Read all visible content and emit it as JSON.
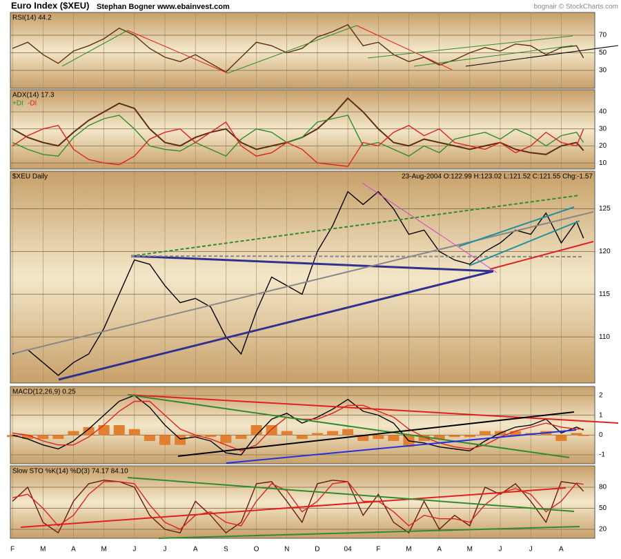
{
  "header": {
    "title": "Euro Index ($XEU)",
    "author": "Stephan Bogner  www.ebainvest.com",
    "credit": "bognair © StockCharts.com"
  },
  "chart_data": {
    "x": [
      0,
      0.5,
      1,
      1.5,
      2,
      2.5,
      3,
      3.5,
      4,
      4.5,
      5,
      5.5,
      6,
      6.5,
      7,
      7.5,
      8,
      8.5,
      9,
      9.5,
      10,
      10.5,
      11,
      11.5,
      12,
      12.5,
      13,
      13.5,
      14,
      14.5,
      15,
      15.5,
      16,
      16.5,
      17,
      17.5,
      18,
      18.5,
      18.73
    ],
    "xlim": [
      -0.07,
      19.1
    ],
    "xticks": [
      {
        "value": 0,
        "label": "F"
      },
      {
        "value": 1,
        "label": "M"
      },
      {
        "value": 2,
        "label": "A"
      },
      {
        "value": 3,
        "label": "M"
      },
      {
        "value": 4,
        "label": "J"
      },
      {
        "value": 5,
        "label": "J"
      },
      {
        "value": 6,
        "label": "A"
      },
      {
        "value": 7,
        "label": "S"
      },
      {
        "value": 8,
        "label": "O"
      },
      {
        "value": 9,
        "label": "N"
      },
      {
        "value": 10,
        "label": "D"
      },
      {
        "value": 11,
        "label": "04"
      },
      {
        "value": 12,
        "label": "F"
      },
      {
        "value": 13,
        "label": "M"
      },
      {
        "value": 14,
        "label": "A"
      },
      {
        "value": 15,
        "label": "M"
      },
      {
        "value": 16,
        "label": "J"
      },
      {
        "value": 17,
        "label": "J"
      },
      {
        "value": 18,
        "label": "A"
      }
    ],
    "grid": true,
    "panels": [
      {
        "type": "line",
        "title": "RSI(14) 44.2",
        "ylim": [
          9.6,
          95.9
        ],
        "yticks": [
          30,
          50,
          70
        ],
        "series": [
          {
            "color": "#5a2e0e",
            "values": [
              55,
              62,
              48,
              38,
              52,
              58,
              66,
              78,
              70,
              55,
              45,
              40,
              48,
              38,
              28,
              45,
              62,
              58,
              50,
              55,
              68,
              74,
              82,
              58,
              62,
              48,
              40,
              45,
              36,
              42,
              50,
              56,
              52,
              60,
              58,
              48,
              56,
              58,
              44.2
            ]
          }
        ]
      },
      {
        "type": "line",
        "title": "ADX(14) 17.3",
        "ylim": [
          6.4,
          53
        ],
        "yticks": [
          10,
          20,
          30,
          40
        ],
        "series": [
          {
            "color": "#5a2e0e",
            "values": [
              30,
              25,
              22,
              20,
              28,
              35,
              40,
              45,
              42,
              30,
              22,
              20,
              25,
              28,
              30,
              22,
              18,
              20,
              22,
              25,
              30,
              38,
              48,
              40,
              30,
              22,
              20,
              24,
              22,
              20,
              18,
              20,
              22,
              18,
              16,
              15,
              20,
              22,
              17.3
            ]
          },
          {
            "name": "+DI",
            "color": "#2e8b2e",
            "values": [
              22,
              18,
              15,
              14,
              25,
              32,
              36,
              38,
              30,
              20,
              18,
              17,
              22,
              18,
              14,
              24,
              30,
              28,
              22,
              25,
              34,
              36,
              38,
              20,
              22,
              18,
              14,
              20,
              16,
              24,
              26,
              28,
              24,
              30,
              26,
              20,
              26,
              28,
              22
            ]
          },
          {
            "name": "-DI",
            "color": "#e02020",
            "values": [
              20,
              26,
              30,
              32,
              18,
              12,
              10,
              9,
              14,
              24,
              28,
              30,
              22,
              28,
              34,
              20,
              14,
              16,
              22,
              18,
              10,
              9,
              8,
              22,
              20,
              28,
              32,
              26,
              30,
              22,
              20,
              18,
              22,
              16,
              20,
              28,
              22,
              20,
              30
            ]
          }
        ]
      },
      {
        "type": "line",
        "title": "$XEU Daily",
        "subtitle": "23-Aug-2004 O:122.99 H:123.02 L:121.52 C:121.55 Chg:-1.57",
        "ylim": [
          104.6,
          129.4
        ],
        "yticks": [
          110,
          115,
          120,
          125
        ],
        "series": [
          {
            "color": "#000000",
            "values": [
              108,
              108.5,
              107,
              105.5,
              107,
              108,
              111,
              115,
              119,
              118.5,
              116,
              114,
              114.5,
              113.5,
              110,
              108,
              113,
              117,
              116,
              115,
              120,
              123,
              127,
              125.5,
              127,
              125,
              122,
              122.5,
              120,
              119,
              118.5,
              120,
              121,
              122.5,
              122,
              124.5,
              121,
              123.5,
              121.55
            ]
          }
        ]
      },
      {
        "type": "line",
        "title": "MACD(12,26,9) 0.25",
        "ylim": [
          -1.45,
          2.45
        ],
        "yticks": [
          -1,
          0,
          1,
          2
        ],
        "series": [
          {
            "type": "bar",
            "color": "#e08030",
            "values": [
              -0.1,
              -0.2,
              -0.2,
              -0.2,
              0.2,
              0.4,
              0.5,
              0.5,
              0.3,
              -0.3,
              -0.5,
              -0.5,
              -0.1,
              -0.1,
              -0.4,
              -0.2,
              0.5,
              0.5,
              0.2,
              -0.2,
              0.1,
              0.2,
              0.3,
              -0.3,
              -0.2,
              -0.3,
              -0.6,
              -0.3,
              -0.2,
              -0.1,
              -0.1,
              0.2,
              0.2,
              0.2,
              0.1,
              0.2,
              -0.3,
              0.1,
              -0.05
            ]
          },
          {
            "color": "#000000",
            "values": [
              0,
              -0.2,
              -0.5,
              -0.7,
              -0.3,
              0.3,
              1.0,
              1.7,
              2.0,
              1.4,
              0.5,
              -0.2,
              -0.1,
              -0.3,
              -0.9,
              -1.0,
              0,
              0.8,
              1.1,
              0.6,
              0.9,
              1.3,
              1.8,
              1.2,
              1.0,
              0.6,
              -0.3,
              -0.4,
              -0.6,
              -0.7,
              -0.8,
              -0.3,
              0.1,
              0.4,
              0.5,
              0.8,
              0.1,
              0.4,
              0.25
            ]
          },
          {
            "color": "#e02020",
            "values": [
              0.1,
              0,
              -0.3,
              -0.5,
              -0.5,
              -0.1,
              0.5,
              1.2,
              1.7,
              1.7,
              1.0,
              0.3,
              0,
              -0.2,
              -0.5,
              -0.8,
              -0.5,
              0.3,
              0.9,
              0.8,
              0.8,
              1.1,
              1.5,
              1.5,
              1.2,
              0.9,
              0.3,
              -0.1,
              -0.4,
              -0.6,
              -0.7,
              -0.5,
              -0.1,
              0.2,
              0.4,
              0.6,
              0.4,
              0.3,
              0.3
            ]
          }
        ]
      },
      {
        "type": "line",
        "title": "Slow STO %K(14) %D(3) 74.17 84.10",
        "ylim": [
          7.2,
          110.5
        ],
        "yticks": [
          20,
          50,
          80
        ],
        "series": [
          {
            "color": "#6b1a0a",
            "values": [
              60,
              80,
              30,
              15,
              60,
              85,
              90,
              88,
              80,
              40,
              20,
              15,
              60,
              40,
              15,
              30,
              85,
              88,
              60,
              30,
              85,
              90,
              88,
              40,
              70,
              30,
              15,
              60,
              20,
              40,
              25,
              80,
              70,
              85,
              60,
              30,
              88,
              85,
              74.17
            ]
          },
          {
            "color": "#e02020",
            "values": [
              65,
              70,
              50,
              25,
              40,
              70,
              88,
              88,
              85,
              55,
              30,
              20,
              40,
              45,
              30,
              25,
              60,
              85,
              75,
              45,
              60,
              85,
              88,
              60,
              60,
              45,
              25,
              40,
              35,
              35,
              30,
              55,
              72,
              78,
              70,
              45,
              60,
              86,
              84.1
            ]
          }
        ]
      }
    ]
  }
}
